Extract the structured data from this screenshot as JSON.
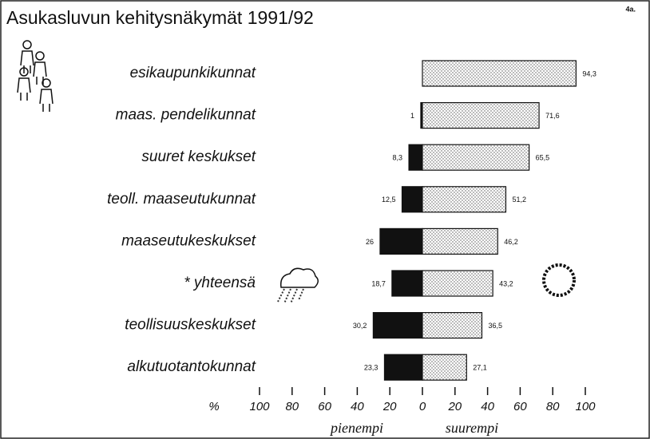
{
  "chart_data": {
    "type": "diverging-bar",
    "title": "Asukasluvun kehitysnäkymät 1991/92",
    "page_label": "4a.",
    "axis_unit": "%",
    "categories": [
      "esikaupunkikunnat",
      "maas. pendelikunnat",
      "suuret keskukset",
      "teoll. maaseutukunnat",
      "maaseutukeskukset",
      "* yhteensä",
      "teollisuuskeskukset",
      "alkutuotantokunnat"
    ],
    "series": [
      {
        "name": "pienempi",
        "color": "#111111",
        "values": [
          null,
          -1,
          -8.3,
          -12.5,
          -26,
          -18.7,
          -30.2,
          -23.3
        ],
        "value_labels": [
          null,
          "1",
          "8,3",
          "12,5",
          "26",
          "18,7",
          "30,2",
          "23,3"
        ]
      },
      {
        "name": "suurempi",
        "color": "#e4e4e4",
        "pattern": "dots",
        "values": [
          94.3,
          71.6,
          65.5,
          51.2,
          46.2,
          43.2,
          36.5,
          27.1
        ],
        "value_labels": [
          "94,3",
          "71,6",
          "65,5",
          "51,2",
          "46,2",
          "43,2",
          "36,5",
          "27,1"
        ]
      }
    ],
    "xlim": [
      -100,
      100
    ],
    "xticks": [
      {
        "value": -100,
        "label": "100"
      },
      {
        "value": -80,
        "label": "80"
      },
      {
        "value": -60,
        "label": "60"
      },
      {
        "value": -40,
        "label": "40"
      },
      {
        "value": -20,
        "label": "20"
      },
      0,
      20,
      40,
      60,
      80,
      100
    ]
  }
}
